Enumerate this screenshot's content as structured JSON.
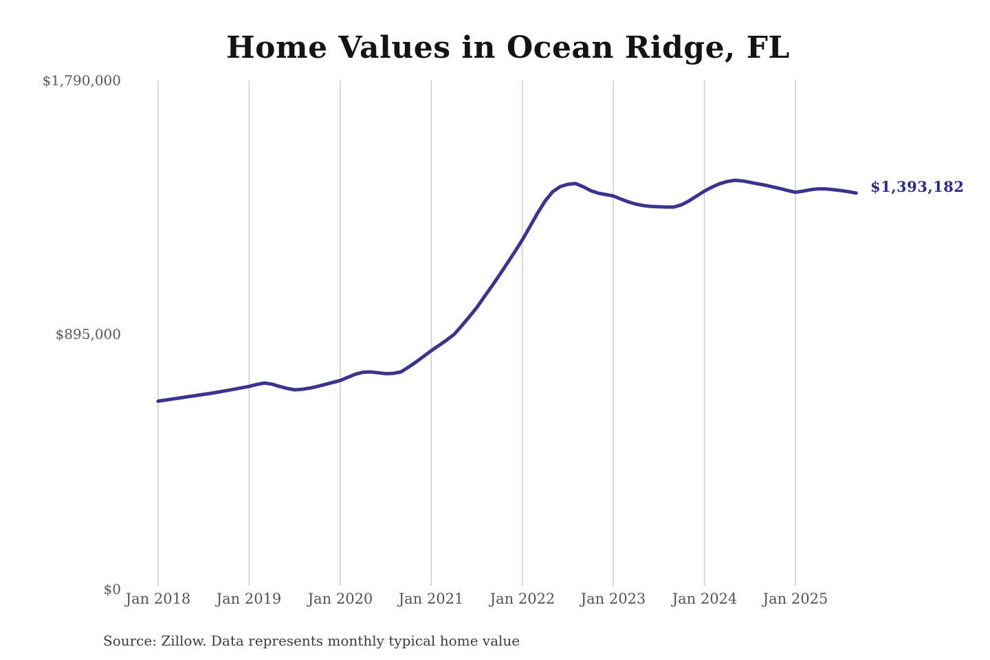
{
  "page": {
    "background": "#ffffff"
  },
  "chart": {
    "title": "Home Values in Ocean Ridge, FL",
    "source_note": "Source: Zillow. Data represents monthly typical home value",
    "end_label": "$1,393,182",
    "line_color": "#39348e",
    "grid_color": "#cbcbcb",
    "axis_label_color": "#56565a",
    "end_label_color": "#2d2a82"
  },
  "chart_data": {
    "type": "line",
    "title": "Home Values in Ocean Ridge, FL",
    "xlabel": "",
    "ylabel": "",
    "x_unit": "month",
    "x_start": "2018-01",
    "x_end": "2025-09",
    "x_tick_labels": [
      "Jan 2018",
      "Jan 2019",
      "Jan 2020",
      "Jan 2021",
      "Jan 2022",
      "Jan 2023",
      "Jan 2024",
      "Jan 2025"
    ],
    "y_tick_labels": [
      "$0",
      "$895,000",
      "$1,790,000"
    ],
    "y_tick_values": [
      0,
      895000,
      1790000
    ],
    "ylim": [
      0,
      1790000
    ],
    "grid": "vertical-only",
    "legend": "none",
    "final_value": 1393182,
    "final_value_label": "$1,393,182",
    "series": [
      {
        "name": "Monthly typical home value",
        "values": [
          660000,
          664000,
          668000,
          672000,
          676000,
          680000,
          684000,
          688000,
          692500,
          697000,
          702000,
          707000,
          712000,
          719000,
          724000,
          720000,
          712000,
          705000,
          700000,
          702000,
          706000,
          712000,
          719000,
          726000,
          733000,
          744000,
          755000,
          762000,
          763000,
          760000,
          757000,
          758000,
          763000,
          780000,
          798000,
          818000,
          838000,
          856000,
          875000,
          895000,
          925000,
          957000,
          990000,
          1028000,
          1066000,
          1105000,
          1145000,
          1186000,
          1228000,
          1275000,
          1322000,
          1365000,
          1398000,
          1416000,
          1424000,
          1427000,
          1416000,
          1402000,
          1393000,
          1388000,
          1383000,
          1372000,
          1362000,
          1354000,
          1349000,
          1346000,
          1345000,
          1344000,
          1344000,
          1352000,
          1366000,
          1383000,
          1400000,
          1414000,
          1426000,
          1434000,
          1438000,
          1436000,
          1431000,
          1426000,
          1421000,
          1415000,
          1409000,
          1402000,
          1396000,
          1400000,
          1405000,
          1408000,
          1408000,
          1405000,
          1402000,
          1398000,
          1393182
        ]
      }
    ]
  }
}
